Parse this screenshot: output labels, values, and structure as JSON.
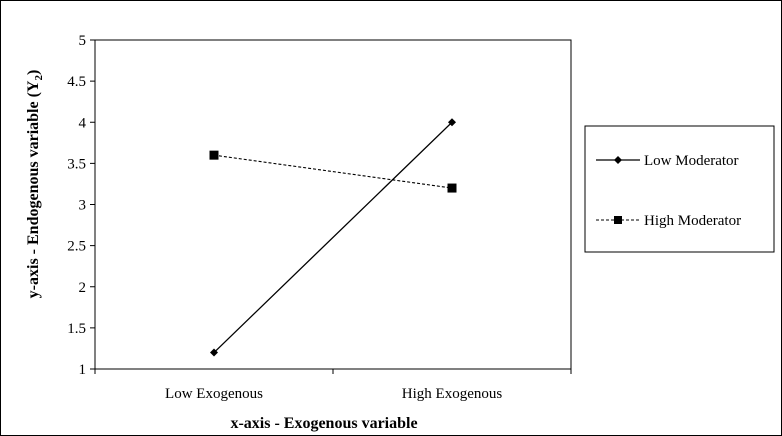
{
  "chart_data": {
    "type": "line",
    "categories": [
      "Low Exogenous",
      "High Exogenous"
    ],
    "series": [
      {
        "name": "Low Moderator",
        "values": [
          1.2,
          4.0
        ],
        "line_style": "solid",
        "marker": "diamond",
        "color": "#000000"
      },
      {
        "name": "High Moderator",
        "values": [
          3.6,
          3.2
        ],
        "line_style": "dashed",
        "marker": "square",
        "color": "#000000"
      }
    ],
    "xlabel": "x-axis - Exogenous variable",
    "ylabel_main": "y-axis - Endogenous  variable (Y",
    "ylabel_sub": "2",
    "ylabel_end": ")",
    "ylim": [
      1,
      5
    ],
    "yticks": [
      "1",
      "1.5",
      "2",
      "2.5",
      "3",
      "3.5",
      "4",
      "4.5",
      "5"
    ],
    "grid": false,
    "legend_position": "right"
  }
}
